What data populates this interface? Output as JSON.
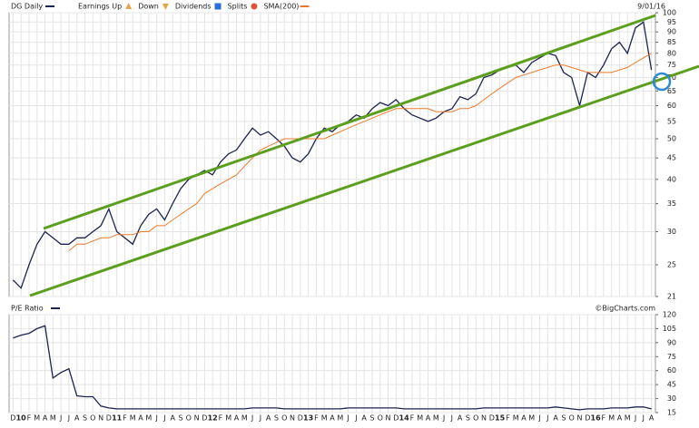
{
  "date": "9/01/16",
  "watermark": "©BigCharts.com",
  "legend_items": [
    {
      "name": "Earnings Up",
      "color": "#e8a24a",
      "marker": "triangle-up"
    },
    {
      "name": "Down",
      "color": "#e8a24a",
      "marker": "triangle-down"
    },
    {
      "name": "Dividends",
      "color": "#2a6fdb",
      "marker": "square"
    },
    {
      "name": "Splits",
      "color": "#e0533a",
      "marker": "circle"
    }
  ],
  "chart_data": [
    {
      "type": "line",
      "log_scale": true,
      "grid": true,
      "categories": [
        "D",
        "10",
        "F",
        "M",
        "A",
        "M",
        "J",
        "J",
        "A",
        "S",
        "O",
        "N",
        "D",
        "11",
        "F",
        "M",
        "A",
        "M",
        "J",
        "J",
        "A",
        "S",
        "O",
        "N",
        "D",
        "12",
        "F",
        "M",
        "A",
        "M",
        "J",
        "J",
        "A",
        "S",
        "O",
        "N",
        "D",
        "13",
        "F",
        "M",
        "A",
        "M",
        "J",
        "J",
        "A",
        "S",
        "O",
        "N",
        "D",
        "14",
        "F",
        "M",
        "A",
        "M",
        "J",
        "J",
        "A",
        "S",
        "O",
        "N",
        "D",
        "15",
        "F",
        "M",
        "A",
        "M",
        "J",
        "J",
        "A",
        "S",
        "O",
        "N",
        "D",
        "16",
        "F",
        "M",
        "A",
        "M",
        "J",
        "J",
        "A"
      ],
      "ylim": [
        21,
        100
      ],
      "yticks": [
        21,
        25,
        30,
        35,
        40,
        45,
        50,
        55,
        60,
        65,
        70,
        75,
        80,
        85,
        90,
        95,
        100
      ],
      "series": [
        {
          "name": "DG Daily",
          "color": "#1c2450",
          "values": [
            23,
            22,
            25,
            28,
            30,
            29,
            28,
            28,
            29,
            29,
            30,
            31,
            34,
            30,
            29,
            28,
            31,
            33,
            34,
            32,
            35,
            38,
            40,
            41,
            42,
            41,
            44,
            46,
            47,
            50,
            53,
            51,
            52,
            50,
            48,
            45,
            44,
            46,
            50,
            53,
            52,
            54,
            55,
            57,
            56,
            59,
            61,
            60,
            62,
            59,
            57,
            56,
            55,
            56,
            58,
            59,
            63,
            62,
            64,
            70,
            71,
            73,
            74,
            75,
            72,
            76,
            78,
            80,
            79,
            72,
            70,
            60,
            72,
            70,
            75,
            82,
            85,
            80,
            92,
            95,
            73
          ]
        },
        {
          "name": "SMA(200)",
          "color": "#f07a2a",
          "values": [
            null,
            null,
            null,
            null,
            null,
            null,
            null,
            27,
            28,
            28,
            28.5,
            29,
            29,
            29.5,
            29.5,
            29.5,
            30,
            30,
            31,
            31,
            32,
            33,
            34,
            35,
            37,
            38,
            39,
            40,
            41,
            43,
            45,
            47,
            48,
            49,
            50,
            50,
            50,
            50,
            50,
            50,
            51,
            52,
            53,
            54,
            55,
            56,
            57,
            58,
            59,
            59,
            59,
            59,
            59,
            58,
            58,
            58,
            59,
            59,
            60,
            62,
            64,
            66,
            68,
            70,
            71,
            72,
            73,
            74,
            75,
            75,
            74,
            73,
            72,
            72,
            72,
            72,
            73,
            74,
            76,
            78,
            80
          ]
        }
      ]
    },
    {
      "type": "line",
      "grid": true,
      "ylim": [
        15,
        120
      ],
      "yticks": [
        15,
        30,
        45,
        60,
        75,
        90,
        105,
        120
      ],
      "series": [
        {
          "name": "P/E Ratio",
          "color": "#1c2450",
          "values": [
            95,
            98,
            100,
            105,
            108,
            52,
            58,
            62,
            33,
            32,
            32,
            22,
            20,
            19,
            19,
            19,
            19,
            19,
            19,
            19,
            19,
            19,
            19,
            19,
            19,
            19,
            19,
            19,
            19,
            19,
            20,
            20,
            20,
            20,
            19,
            19,
            19,
            19,
            19,
            19,
            19,
            19,
            20,
            20,
            20,
            20,
            20,
            20,
            20,
            19,
            19,
            19,
            19,
            19,
            19,
            19,
            19,
            19,
            19,
            20,
            20,
            20,
            20,
            20,
            20,
            20,
            20,
            20,
            21,
            20,
            19,
            18,
            19,
            19,
            19,
            20,
            20,
            20,
            21,
            21,
            19
          ]
        }
      ]
    }
  ]
}
